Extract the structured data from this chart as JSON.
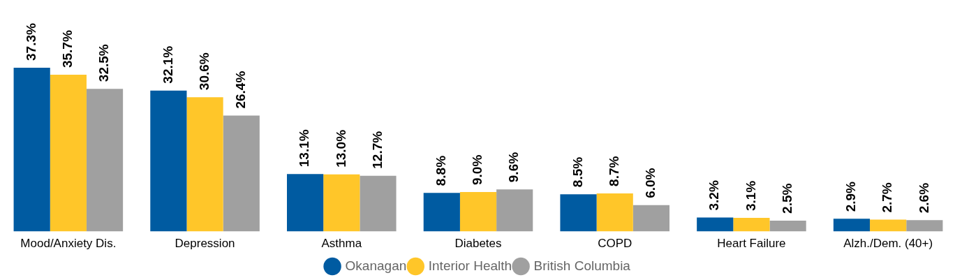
{
  "chart_data": {
    "type": "bar",
    "categories": [
      "Mood/Anxiety Dis.",
      "Depression",
      "Asthma",
      "Diabetes",
      "COPD",
      "Heart Failure",
      "Alzh./Dem. (40+)"
    ],
    "series": [
      {
        "name": "Okanagan",
        "color": "#005ba1",
        "values": [
          37.3,
          32.1,
          13.1,
          8.8,
          8.5,
          3.2,
          2.9
        ],
        "value_labels": [
          "37.3%",
          "32.1%",
          "13.1%",
          "8.8%",
          "8.5%",
          "3.2%",
          "2.9%"
        ]
      },
      {
        "name": "Interior Health",
        "color": "#ffc629",
        "values": [
          35.7,
          30.6,
          13.0,
          9.0,
          8.7,
          3.1,
          2.7
        ],
        "value_labels": [
          "35.7%",
          "30.6%",
          "13.0%",
          "9.0%",
          "8.7%",
          "3.1%",
          "2.7%"
        ]
      },
      {
        "name": "British Columbia",
        "color": "#a0a0a0",
        "values": [
          32.5,
          26.4,
          12.7,
          9.6,
          6.0,
          2.5,
          2.6
        ],
        "value_labels": [
          "32.5%",
          "26.4%",
          "12.7%",
          "9.6%",
          "6.0%",
          "2.5%",
          "2.6%"
        ]
      }
    ],
    "legend": "bottom",
    "grid": false
  }
}
